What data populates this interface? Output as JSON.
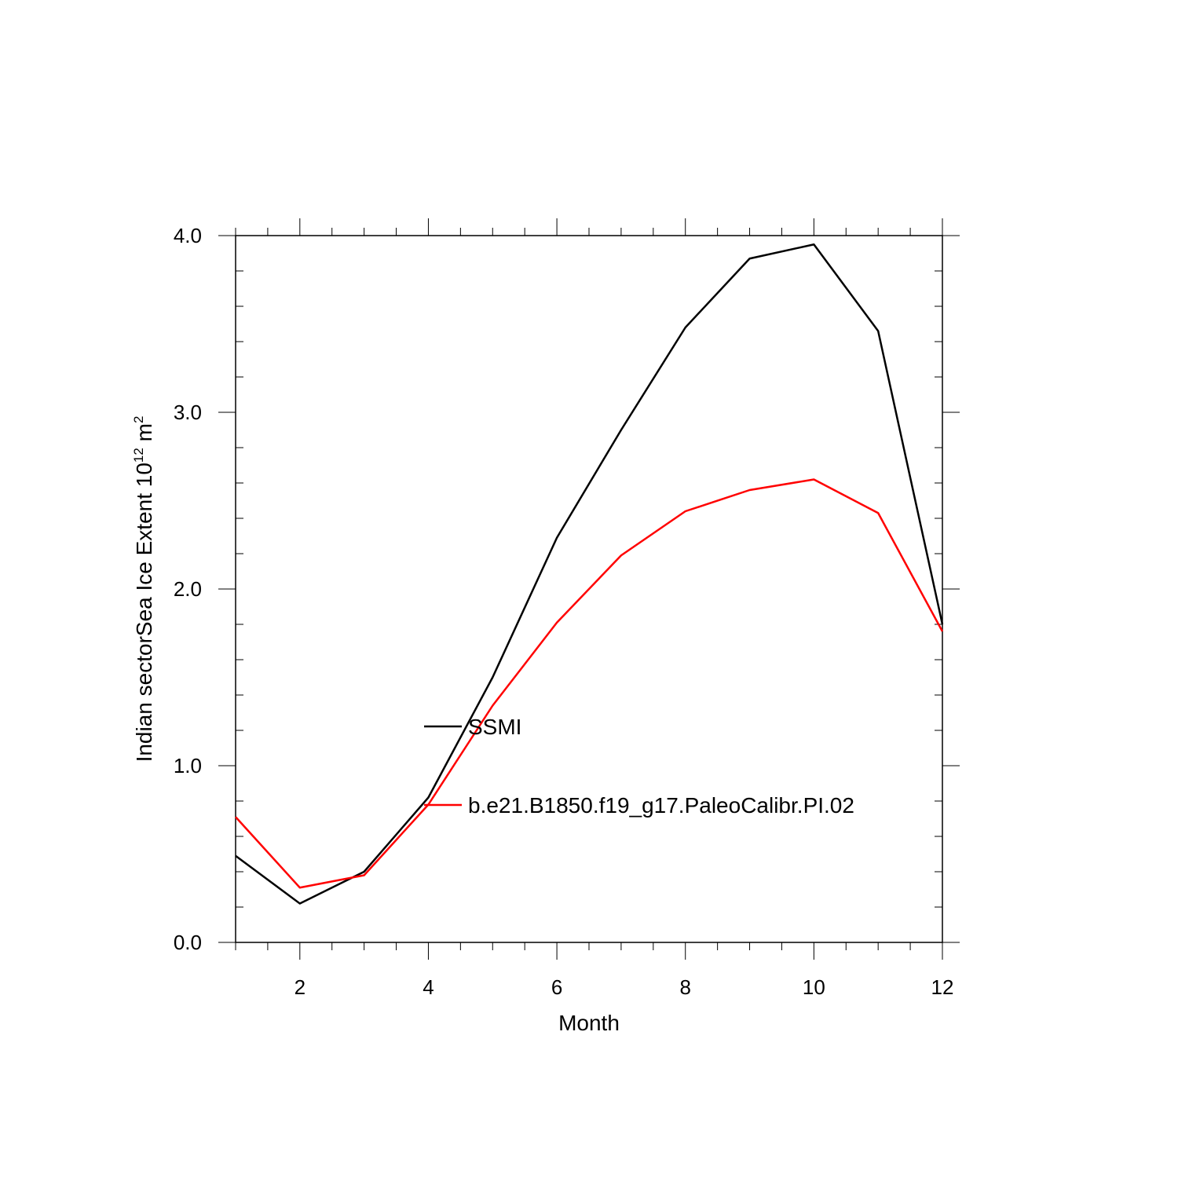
{
  "chart_data": {
    "type": "line",
    "title": "",
    "xlabel": "Month",
    "ylabel": {
      "prefix": "Indian sectorSea Ice Extent 10",
      "exp1": "12",
      "mid": " m",
      "exp2": "2"
    },
    "xlim": [
      1,
      12
    ],
    "ylim": [
      0,
      4
    ],
    "x_ticks": [
      2,
      4,
      6,
      8,
      10,
      12
    ],
    "x_tick_labels": [
      "2",
      "4",
      "6",
      "8",
      "10",
      "12"
    ],
    "y_ticks": [
      0,
      1,
      2,
      3,
      4
    ],
    "y_tick_labels": [
      "0.0",
      "1.0",
      "2.0",
      "3.0",
      "4.0"
    ],
    "grid": false,
    "legend_placement": "center",
    "x": [
      1,
      2,
      3,
      4,
      5,
      6,
      7,
      8,
      9,
      10,
      11,
      12
    ],
    "series": [
      {
        "name": "SSMI",
        "color": "#000000",
        "values": [
          0.49,
          0.22,
          0.4,
          0.82,
          1.5,
          2.29,
          2.9,
          3.48,
          3.87,
          3.95,
          3.46,
          1.8
        ]
      },
      {
        "name": "b.e21.B1850.f19_g17.PaleoCalibr.PI.02",
        "color": "#ff0000",
        "values": [
          0.71,
          0.31,
          0.38,
          0.78,
          1.34,
          1.81,
          2.19,
          2.44,
          2.56,
          2.62,
          2.43,
          1.76
        ]
      }
    ]
  }
}
